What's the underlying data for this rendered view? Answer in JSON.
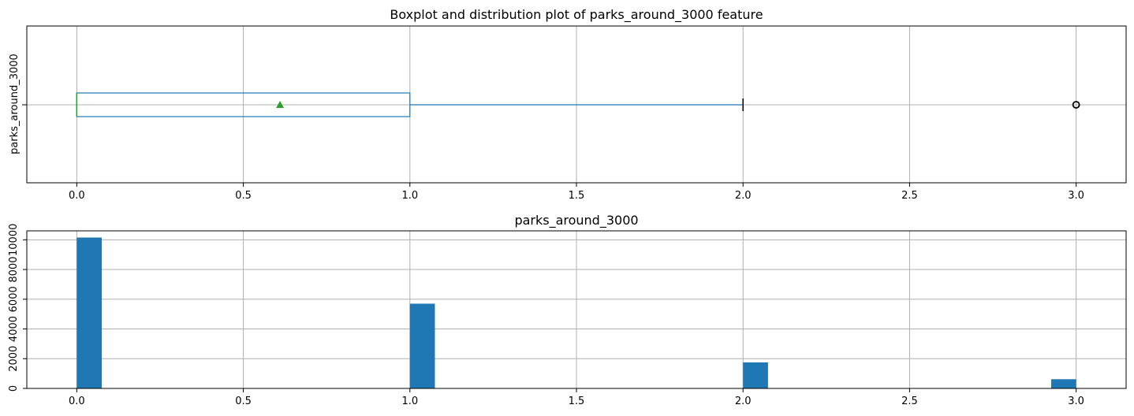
{
  "chart_data": [
    {
      "type": "boxplot",
      "title": "Boxplot and distribution plot of parks_around_3000 feature",
      "ylabel": "parks_around_3000",
      "category_label": "parks_around_3000",
      "xlim": [
        -0.15,
        3.15
      ],
      "xticks": [
        0.0,
        0.5,
        1.0,
        1.5,
        2.0,
        2.5,
        3.0
      ],
      "xtick_labels": [
        "0.0",
        "0.5",
        "1.0",
        "1.5",
        "2.0",
        "2.5",
        "3.0"
      ],
      "grid": true,
      "stats": {
        "q1": 0.0,
        "median": 0.0,
        "q3": 1.0,
        "whisker_low": 0.0,
        "whisker_high": 2.0,
        "mean": 0.61,
        "outliers": [
          3.0
        ]
      },
      "colors": {
        "box": "#1f77b4",
        "median": "#2ca02c",
        "mean": "#2ca02c",
        "whisker_cap": "#000000",
        "outlier": "#000000"
      }
    },
    {
      "type": "histogram",
      "title": "parks_around_3000",
      "xlim": [
        -0.15,
        3.15
      ],
      "ylim": [
        0,
        10600
      ],
      "xticks": [
        0.0,
        0.5,
        1.0,
        1.5,
        2.0,
        2.5,
        3.0
      ],
      "xtick_labels": [
        "0.0",
        "0.5",
        "1.0",
        "1.5",
        "2.0",
        "2.5",
        "3.0"
      ],
      "yticks": [
        0,
        2000,
        4000,
        6000,
        8000,
        10000
      ],
      "ytick_labels": [
        "0",
        "2000",
        "4000",
        "6000",
        "8000",
        "10000"
      ],
      "grid": true,
      "bin_width": 0.075,
      "bars": [
        {
          "x": 0.0,
          "value": 10150
        },
        {
          "x": 1.0,
          "value": 5700
        },
        {
          "x": 2.0,
          "value": 1750
        },
        {
          "x": 2.925,
          "value": 620
        }
      ],
      "colors": {
        "bar": "#1f77b4"
      }
    }
  ]
}
